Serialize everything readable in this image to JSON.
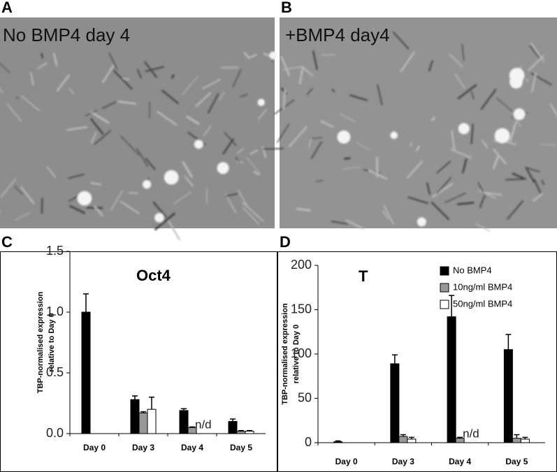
{
  "panels": [
    {
      "label": "A",
      "caption": "No BMP4  day 4"
    },
    {
      "label": "B",
      "caption": "+BMP4  day4"
    }
  ],
  "chart_data": [
    {
      "label": "C",
      "type": "bar",
      "title": "Oct4",
      "ylabel": [
        "TBP-normalised expression",
        "relative to Day 0"
      ],
      "categories": [
        "Day 0",
        "Day 3",
        "Day 4",
        "Day 5"
      ],
      "series": [
        {
          "color": "#000000",
          "values": [
            1.0,
            0.28,
            0.19,
            0.1
          ],
          "errors": [
            0.15,
            0.03,
            0.015,
            0.02
          ]
        },
        {
          "color": "#999999",
          "values": [
            null,
            0.17,
            0.05,
            0.02
          ],
          "errors": [
            null,
            0.01,
            0.005,
            0.005
          ]
        },
        {
          "color": "#ffffff",
          "values": [
            null,
            0.2,
            null,
            0.02
          ],
          "errors": [
            null,
            0.1,
            null,
            0.005
          ],
          "value_labels": [
            null,
            null,
            "n/d",
            null
          ]
        }
      ],
      "ylim": [
        0,
        1.5
      ],
      "yticks": [
        {
          "value": 0,
          "label": "0.0"
        },
        {
          "value": 0.5,
          "label": "0.5"
        },
        {
          "value": 1,
          "label": "1.0"
        },
        1.5
      ]
    },
    {
      "label": "D",
      "type": "bar",
      "title": "T",
      "ylabel": [
        "TBP-normalised expression",
        "relative to Day 0"
      ],
      "categories": [
        "Day 0",
        "Day 3",
        "Day 4",
        "Day 5"
      ],
      "series": [
        {
          "name": "No BMP4",
          "color": "#000000",
          "values": [
            1,
            89,
            142,
            105
          ],
          "errors": [
            1,
            10,
            24,
            17
          ]
        },
        {
          "name": "10ng/ml BMP4",
          "color": "#999999",
          "values": [
            null,
            7,
            5,
            5
          ],
          "errors": [
            null,
            2,
            1,
            4
          ]
        },
        {
          "name": "50ng/ml BMP4",
          "color": "#ffffff",
          "values": [
            null,
            4,
            null,
            4
          ],
          "errors": [
            null,
            2,
            null,
            2
          ],
          "value_labels": [
            null,
            null,
            "n/d",
            null
          ]
        }
      ],
      "ylim": [
        0,
        200
      ],
      "yticks": [
        0,
        50,
        100,
        150,
        200
      ],
      "legend": "top-right"
    }
  ]
}
